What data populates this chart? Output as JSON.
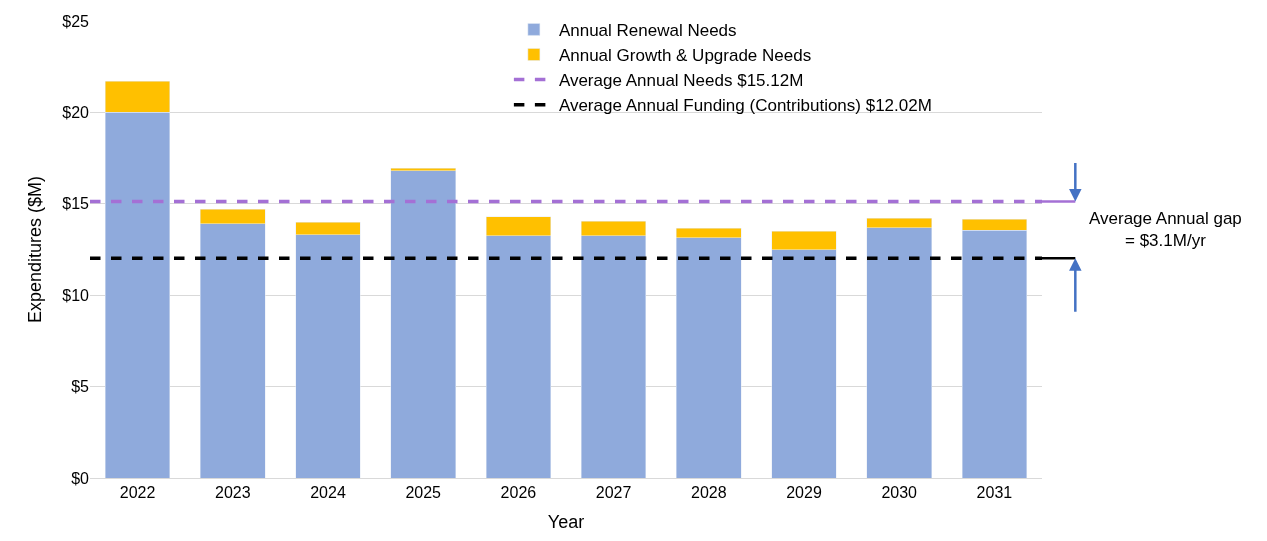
{
  "chart_data": {
    "type": "bar",
    "stacked": true,
    "xlabel": "Year",
    "ylabel": "Expenditures ($M)",
    "categories": [
      "2022",
      "2023",
      "2024",
      "2025",
      "2026",
      "2027",
      "2028",
      "2029",
      "2030",
      "2031"
    ],
    "series": [
      {
        "name": "Annual Renewal Needs",
        "color": "#8faadc",
        "values": [
          20.0,
          13.9,
          13.3,
          16.8,
          13.25,
          13.25,
          13.15,
          12.5,
          13.7,
          13.55
        ]
      },
      {
        "name": "Annual Growth & Upgrade Needs",
        "color": "#ffc000",
        "values": [
          1.7,
          0.8,
          0.7,
          0.15,
          1.05,
          0.8,
          0.5,
          1.0,
          0.5,
          0.6
        ]
      }
    ],
    "ref_lines": [
      {
        "axis": "y",
        "value": 15.12,
        "label": "Average Annual Needs $15.12M",
        "color": "#a470d5",
        "line_style": "dashed"
      },
      {
        "axis": "y",
        "value": 12.02,
        "label": "Average Annual Funding (Contributions) $12.02M",
        "color": "#000000",
        "line_style": "dashed"
      }
    ],
    "annotations": [
      "Average Annual gap\n= $3.1M/yr"
    ],
    "ylim": [
      0,
      25
    ],
    "yticks": [
      {
        "value": 0,
        "label": "$0"
      },
      {
        "value": 5,
        "label": "$5"
      },
      {
        "value": 10,
        "label": "$10"
      },
      {
        "value": 15,
        "label": "$15"
      },
      {
        "value": 20,
        "label": "$20"
      },
      {
        "value": 25,
        "label": "$25"
      }
    ],
    "grid": "y",
    "legend": "top"
  }
}
